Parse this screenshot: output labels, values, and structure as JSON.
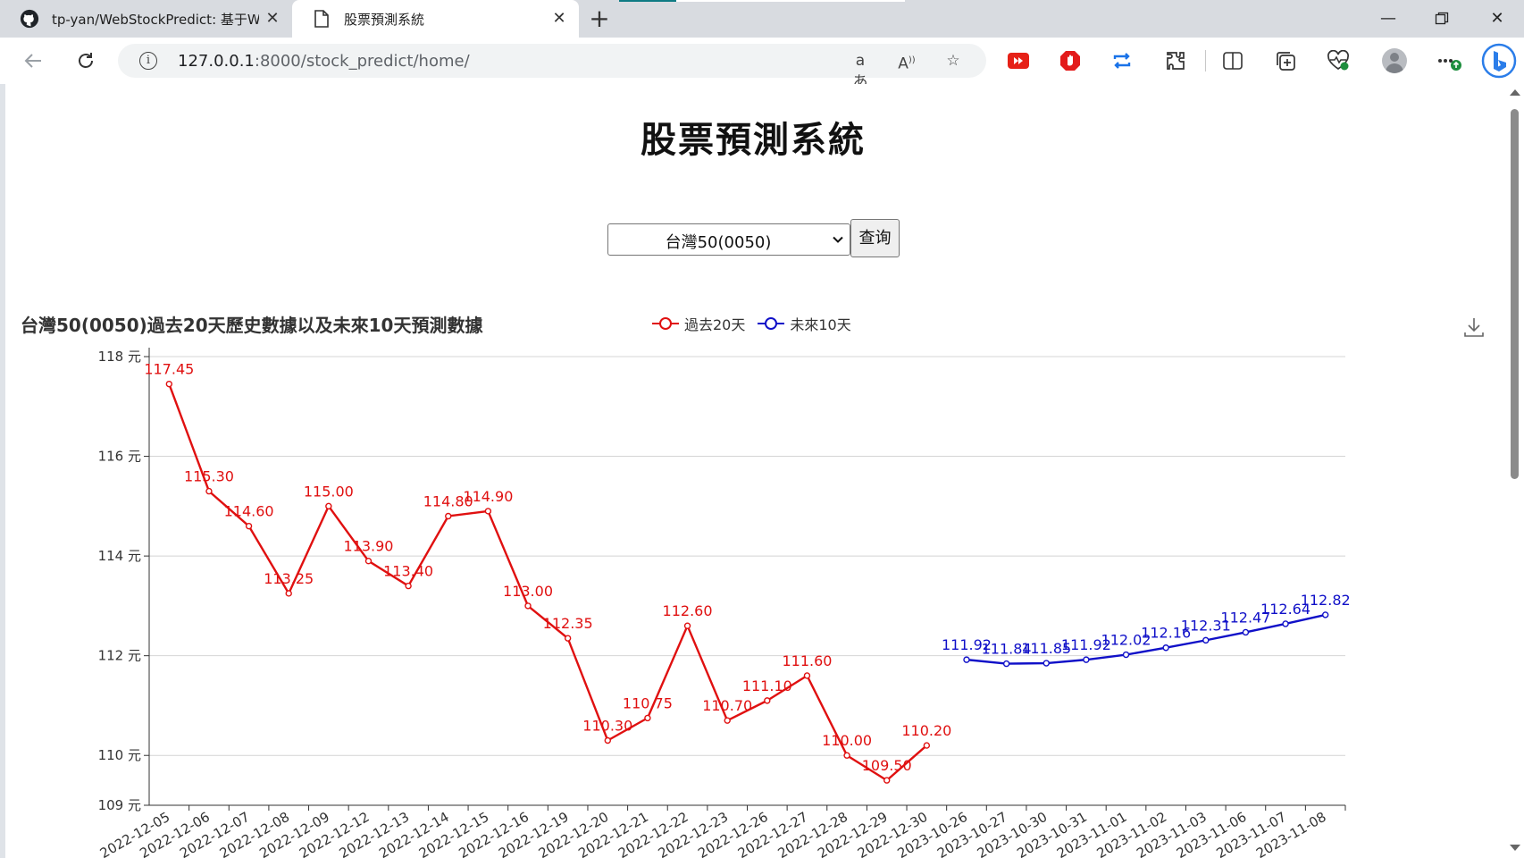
{
  "browser": {
    "tabs": [
      {
        "title": "tp-yan/WebStockPredict: 基于We",
        "icon": "github-icon",
        "active": false
      },
      {
        "title": "股票預測系統",
        "icon": "page-icon",
        "active": true
      }
    ],
    "url_host": "127.0.0.1",
    "url_path": ":8000/stock_predict/home/"
  },
  "page": {
    "title": "股票預測系統",
    "select_value": "台灣50(0050)",
    "query_label": "查询"
  },
  "chart_data": {
    "type": "line",
    "title": "台灣50(0050)過去20天歷史數據以及未來10天預測數據",
    "categories": [
      "2022-12-05",
      "2022-12-06",
      "2022-12-07",
      "2022-12-08",
      "2022-12-09",
      "2022-12-12",
      "2022-12-13",
      "2022-12-14",
      "2022-12-15",
      "2022-12-16",
      "2022-12-19",
      "2022-12-20",
      "2022-12-21",
      "2022-12-22",
      "2022-12-23",
      "2022-12-26",
      "2022-12-27",
      "2022-12-28",
      "2022-12-29",
      "2022-12-30",
      "2023-10-26",
      "2023-10-27",
      "2023-10-30",
      "2023-10-31",
      "2023-11-01",
      "2023-11-02",
      "2023-11-03",
      "2023-11-06",
      "2023-11-07",
      "2023-11-08"
    ],
    "series": [
      {
        "name": "過去20天",
        "color": "#e01010",
        "values": [
          117.45,
          115.3,
          114.6,
          113.25,
          115.0,
          113.9,
          113.4,
          114.8,
          114.9,
          113.0,
          112.35,
          110.3,
          110.75,
          112.6,
          110.7,
          111.1,
          111.6,
          110.0,
          109.5,
          110.2,
          null,
          null,
          null,
          null,
          null,
          null,
          null,
          null,
          null,
          null
        ],
        "labels": [
          "117.45",
          "115.30",
          "114.60",
          "113.25",
          "115.00",
          "113.90",
          "113.40",
          "114.80",
          "114.90",
          "113.00",
          "112.35",
          "110.30",
          "110.75",
          "112.60",
          "110.70",
          "111.10",
          "111.60",
          "110.00",
          "109.50",
          "110.20",
          "",
          "",
          "",
          "",
          "",
          "",
          "",
          "",
          "",
          ""
        ]
      },
      {
        "name": "未來10天",
        "color": "#1010c8",
        "values": [
          null,
          null,
          null,
          null,
          null,
          null,
          null,
          null,
          null,
          null,
          null,
          null,
          null,
          null,
          null,
          null,
          null,
          null,
          null,
          null,
          111.92,
          111.84,
          111.85,
          111.92,
          112.02,
          112.16,
          112.31,
          112.47,
          112.64,
          112.82
        ],
        "labels": [
          "",
          "",
          "",
          "",
          "",
          "",
          "",
          "",
          "",
          "",
          "",
          "",
          "",
          "",
          "",
          "",
          "",
          "",
          "",
          "",
          "111.92",
          "111.84",
          "111.85",
          "111.92",
          "112.02",
          "112.16",
          "112.31",
          "112.47",
          "112.64",
          "112.82"
        ]
      }
    ],
    "yticks": [
      109,
      110,
      112,
      114,
      116,
      118
    ],
    "ytick_labels": [
      "109 元",
      "110 元",
      "112 元",
      "114 元",
      "116 元",
      "118 元"
    ],
    "ylim": [
      109,
      118
    ],
    "grid": true,
    "legend": "top-center"
  }
}
